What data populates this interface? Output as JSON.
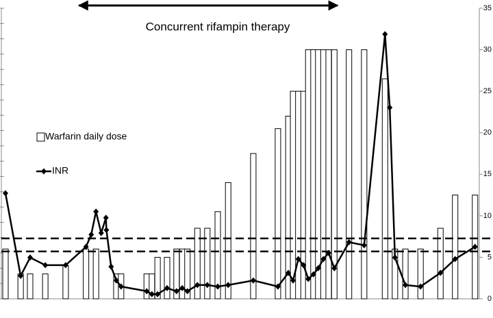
{
  "chart_data": {
    "type": "bar_line",
    "annotation": {
      "text": "Concurrent rifampin therapy",
      "x_range": [
        15.5,
        70.1
      ]
    },
    "xlim": [
      0,
      100
    ],
    "ylim": [
      0,
      19
    ],
    "yticks": [
      0,
      1,
      2,
      3,
      4,
      5,
      6,
      7,
      8,
      9,
      10,
      11,
      12,
      13,
      14,
      15,
      16,
      17,
      18,
      19
    ],
    "y2lim": [
      0,
      35
    ],
    "y2ticks": [
      0,
      5,
      10,
      15,
      20,
      25,
      30,
      35
    ],
    "reference_lines": [
      3.1,
      3.95
    ],
    "series": [
      {
        "name": "Warfarin daily dose",
        "type": "bar",
        "axis": "y2",
        "color": "#ffffff",
        "x": [
          0,
          3.2,
          5.2,
          8.4,
          12.7,
          17.0,
          19.1,
          23.4,
          24.4,
          29.8,
          30.9,
          32.1,
          34.1,
          36.1,
          37.3,
          38.4,
          40.5,
          42.6,
          44.8,
          47.0,
          52.3,
          57.5,
          59.7,
          60.7,
          61.8,
          62.9,
          63.9,
          65.0,
          66.0,
          67.1,
          68.2,
          69.4,
          72.5,
          75.7,
          80.1,
          82.2,
          84.4,
          87.6,
          91.8,
          94.9,
          99.1
        ],
        "values": [
          6,
          3,
          3,
          3,
          4,
          6,
          6,
          3,
          3,
          3,
          3,
          5,
          5,
          6,
          6,
          6,
          8.5,
          8.5,
          10.5,
          14,
          17.5,
          20.5,
          22,
          25,
          25,
          25,
          30,
          30,
          30,
          30,
          30,
          30,
          30,
          30,
          26.5,
          6,
          6,
          6,
          8.5,
          12.5,
          12.5
        ]
      },
      {
        "name": "INR",
        "type": "line",
        "axis": "y",
        "color": "#000000",
        "x": [
          0,
          3.2,
          5.2,
          8.4,
          12.7,
          17.0,
          18.1,
          19.1,
          20.2,
          21.2,
          21.3,
          22.3,
          23.4,
          24.4,
          29.8,
          30.9,
          32.1,
          34.1,
          36.1,
          37.3,
          38.4,
          40.5,
          42.6,
          44.8,
          47.0,
          52.3,
          57.5,
          59.7,
          60.7,
          61.8,
          62.9,
          63.9,
          65.0,
          66.0,
          67.1,
          68.2,
          69.4,
          72.5,
          75.7,
          80.1,
          81.1,
          82.2,
          84.4,
          87.6,
          91.8,
          94.9,
          99.1
        ],
        "values": [
          6.9,
          1.5,
          2.7,
          2.2,
          2.2,
          3.4,
          4.2,
          5.7,
          4.3,
          5.3,
          4.5,
          2.1,
          1.2,
          0.8,
          0.5,
          0.3,
          0.3,
          0.7,
          0.5,
          0.7,
          0.5,
          0.9,
          0.9,
          0.8,
          0.9,
          1.2,
          0.8,
          1.7,
          1.2,
          2.6,
          2.2,
          1.3,
          1.6,
          2.0,
          2.6,
          3.0,
          2.0,
          3.7,
          3.5,
          17.3,
          12.5,
          2.7,
          0.9,
          0.8,
          1.7,
          2.6,
          3.4
        ]
      }
    ]
  }
}
